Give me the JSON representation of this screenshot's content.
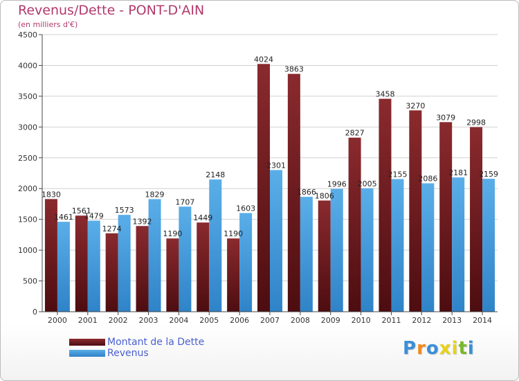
{
  "header": {
    "title": "Revenus/Dette - PONT-D'AIN",
    "subtitle": "(en milliers d'€)"
  },
  "legend": {
    "items": [
      {
        "label": "Montant de la Dette"
      },
      {
        "label": "Revenus"
      }
    ]
  },
  "logo": {
    "text": "Proxiti"
  },
  "colors": {
    "dette_top": "#8a2a2e",
    "dette_bottom": "#4d0d10",
    "revenus_top": "#5aaee8",
    "revenus_bottom": "#2f83c8",
    "title": "#b2396b",
    "legend_text": "#4a5fd0"
  },
  "chart_data": {
    "type": "bar",
    "title": "Revenus/Dette - PONT-D'AIN",
    "subtitle": "(en milliers d'€)",
    "categories": [
      "2000",
      "2001",
      "2002",
      "2003",
      "2004",
      "2005",
      "2006",
      "2007",
      "2008",
      "2009",
      "2010",
      "2011",
      "2012",
      "2013",
      "2014"
    ],
    "series": [
      {
        "name": "Montant de la Dette",
        "values": [
          1830,
          1561,
          1274,
          1392,
          1190,
          1449,
          1190,
          4024,
          3863,
          1806,
          2827,
          3458,
          3270,
          3079,
          2998
        ],
        "labels": [
          "1830",
          "1561",
          "1274",
          "1392",
          "1190",
          "1449",
          "1190",
          "4024",
          "3863",
          "1806",
          "2827",
          "3458",
          "3270",
          "3079",
          "2998"
        ]
      },
      {
        "name": "Revenus",
        "values": [
          1461,
          1479,
          1573,
          1829,
          1707,
          2148,
          1603,
          2301,
          1866,
          1996,
          2005,
          2155,
          2086,
          2181,
          2159
        ],
        "labels": [
          "1461",
          "1479",
          "1573",
          "1829",
          "1707",
          "2148",
          "1603",
          "2301",
          "1866",
          "1996",
          "2005",
          "2155",
          "2086",
          "2181",
          "2159"
        ]
      }
    ],
    "ylim": [
      0,
      4500
    ],
    "yticks": [
      0,
      500,
      1000,
      1500,
      2000,
      2500,
      3000,
      3500,
      4000,
      4500
    ],
    "grid": true,
    "legend_position": "bottom-left"
  }
}
